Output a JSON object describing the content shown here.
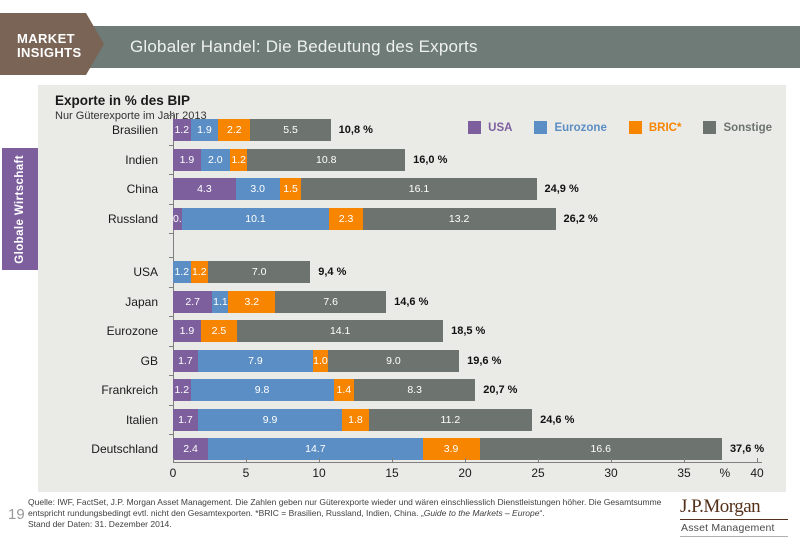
{
  "badge": {
    "line1": "MARKET",
    "line2": "INSIGHTS"
  },
  "header": {
    "title": "Globaler Handel: Die Bedeutung des Exports"
  },
  "sidebar": {
    "tab_label": "Globale Wirtschaft"
  },
  "chart_data": {
    "type": "bar",
    "orientation": "horizontal",
    "stacked": true,
    "title": "Exporte in % des BIP",
    "subtitle": "Nur Güterexporte im Jahr 2013",
    "xlabel": "%",
    "xlim": [
      0,
      40
    ],
    "x_ticks": [
      0,
      5,
      10,
      15,
      20,
      25,
      30,
      35,
      40
    ],
    "x_unit": "%",
    "grid": false,
    "legend_position": "top-right",
    "series_names": [
      "USA",
      "Eurozone",
      "BRIC*",
      "Sonstige"
    ],
    "series_colors": [
      "#7d5f9e",
      "#5b8ec4",
      "#f78500",
      "#6d736f"
    ],
    "rows": [
      {
        "label": "Brasilien",
        "group": 0,
        "values": [
          1.2,
          1.9,
          2.2,
          5.5
        ],
        "total": "10,8 %"
      },
      {
        "label": "Indien",
        "group": 0,
        "values": [
          1.9,
          2.0,
          1.2,
          10.8
        ],
        "total": "16,0 %"
      },
      {
        "label": "China",
        "group": 0,
        "values": [
          4.3,
          3.0,
          1.5,
          16.1
        ],
        "total": "24,9 %"
      },
      {
        "label": "Russland",
        "group": 0,
        "values": [
          0.6,
          10.1,
          2.3,
          13.2
        ],
        "total": "26,2 %"
      },
      {
        "label": "USA",
        "group": 1,
        "values": [
          0,
          1.2,
          1.2,
          7.0
        ],
        "total": "9,4 %"
      },
      {
        "label": "Japan",
        "group": 1,
        "values": [
          2.7,
          1.1,
          3.2,
          7.6
        ],
        "total": "14,6 %"
      },
      {
        "label": "Eurozone",
        "group": 1,
        "values": [
          1.9,
          0,
          2.5,
          14.1
        ],
        "total": "18,5 %"
      },
      {
        "label": "GB",
        "group": 1,
        "values": [
          1.7,
          7.9,
          1.0,
          9.0
        ],
        "total": "19,6 %"
      },
      {
        "label": "Frankreich",
        "group": 1,
        "values": [
          1.2,
          9.8,
          1.4,
          8.3
        ],
        "total": "20,7 %"
      },
      {
        "label": "Italien",
        "group": 1,
        "values": [
          1.7,
          9.9,
          1.8,
          11.2
        ],
        "total": "24,6 %"
      },
      {
        "label": "Deutschland",
        "group": 1,
        "values": [
          2.4,
          14.7,
          3.9,
          16.6
        ],
        "total": "37,6 %"
      }
    ]
  },
  "footer": {
    "line1": "Quelle: IWF, FactSet, J.P. Morgan Asset Management. Die Zahlen geben nur Güterexporte wieder und wären einschliesslich Dienstleistungen höher. Die Gesamtsumme",
    "line2_pre": "entspricht rundungsbedingt evtl. nicht den Gesamtexporten. *BRIC = Brasilien, Russland, Indien, China. „",
    "line2_italic": "Guide to the Markets – Europe",
    "line2_post": "“.",
    "line3": "Stand der Daten: 31. Dezember 2014.",
    "page_number": "19",
    "logo_name": "J.P.Morgan",
    "logo_sub": "Asset Management"
  }
}
